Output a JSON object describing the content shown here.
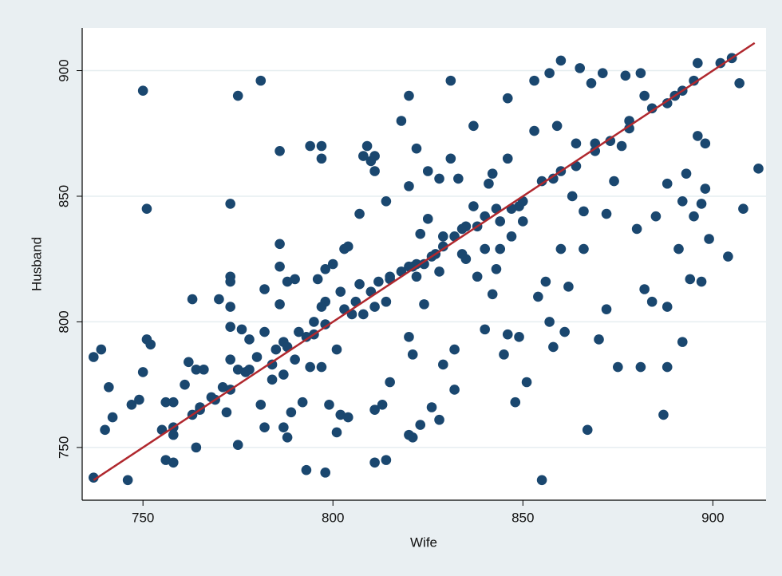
{
  "chart_data": {
    "type": "scatter",
    "x_label": "Wife",
    "y_label": "Husband",
    "color": "#1a476f",
    "xlim": [
      734,
      914
    ],
    "ylim": [
      729,
      917
    ],
    "xticks": [
      750,
      800,
      850,
      900
    ],
    "yticks": [
      750,
      800,
      850,
      900
    ],
    "grid": true,
    "x": [
      737,
      739,
      737,
      740,
      741,
      742,
      746,
      747,
      749,
      750,
      751,
      752,
      750,
      751,
      755,
      756,
      758,
      756,
      758,
      758,
      758,
      761,
      762,
      763,
      764,
      766,
      763,
      764,
      765,
      768,
      770,
      771,
      772,
      773,
      773,
      773,
      773,
      773,
      773,
      773,
      775,
      775,
      776,
      775,
      778,
      778,
      781,
      782,
      782,
      781,
      782,
      784,
      785,
      786,
      786,
      786,
      786,
      787,
      787,
      787,
      788,
      788,
      789,
      790,
      792,
      793,
      793,
      794,
      794,
      795,
      796,
      797,
      797,
      797,
      798,
      798,
      798,
      799,
      800,
      801,
      801,
      802,
      803,
      804,
      804,
      805,
      807,
      807,
      808,
      809,
      810,
      811,
      811,
      811,
      811,
      811,
      813,
      814,
      814,
      815,
      815,
      818,
      820,
      820,
      820,
      820,
      820,
      821,
      821,
      822,
      822,
      823,
      823,
      824,
      825,
      825,
      826,
      827,
      828,
      828,
      829,
      829,
      831,
      831,
      832,
      832,
      833,
      834,
      835,
      837,
      838,
      840,
      840,
      841,
      842,
      842,
      843,
      844,
      845,
      846,
      846,
      846,
      847,
      848,
      849,
      849,
      850,
      851,
      853,
      853,
      854,
      855,
      856,
      857,
      857,
      858,
      858,
      859,
      860,
      860,
      861,
      862,
      863,
      864,
      865,
      866,
      866,
      867,
      868,
      869,
      870,
      871,
      872,
      872,
      874,
      875,
      876,
      877,
      878,
      880,
      881,
      881,
      882,
      882,
      884,
      885,
      887,
      888,
      888,
      888,
      890,
      891,
      892,
      892,
      893,
      894,
      895,
      896,
      896,
      897,
      897,
      898,
      898,
      899,
      902,
      904,
      905,
      907,
      908,
      912,
      780,
      784,
      788,
      795,
      798,
      803,
      806,
      810,
      815,
      818,
      821,
      824,
      826,
      829,
      832,
      835,
      838,
      840,
      843,
      847,
      850,
      855,
      860,
      864,
      869,
      873,
      878,
      884,
      888,
      892,
      895,
      905,
      791,
      808,
      812,
      822,
      844,
      837,
      828,
      834,
      814,
      802,
      797,
      790,
      777,
      769,
      765
    ],
    "values": [
      786,
      789,
      738,
      757,
      774,
      762,
      737,
      767,
      769,
      780,
      793,
      791,
      892,
      845,
      757,
      768,
      768,
      745,
      744,
      758,
      755,
      775,
      784,
      809,
      781,
      781,
      763,
      750,
      765,
      770,
      809,
      774,
      764,
      847,
      818,
      816,
      806,
      798,
      785,
      773,
      751,
      890,
      797,
      781,
      793,
      781,
      896,
      796,
      813,
      767,
      758,
      777,
      789,
      868,
      831,
      822,
      807,
      792,
      779,
      758,
      754,
      816,
      764,
      817,
      768,
      794,
      741,
      870,
      782,
      800,
      817,
      870,
      865,
      782,
      740,
      808,
      821,
      767,
      823,
      756,
      789,
      763,
      829,
      830,
      762,
      803,
      815,
      843,
      866,
      870,
      864,
      860,
      866,
      806,
      744,
      765,
      767,
      745,
      848,
      818,
      776,
      880,
      854,
      755,
      890,
      822,
      794,
      787,
      754,
      823,
      869,
      835,
      759,
      807,
      841,
      860,
      766,
      827,
      761,
      857,
      834,
      783,
      896,
      865,
      789,
      773,
      857,
      837,
      825,
      878,
      818,
      797,
      829,
      855,
      811,
      859,
      821,
      829,
      787,
      795,
      889,
      865,
      834,
      768,
      794,
      846,
      840,
      776,
      896,
      876,
      810,
      737,
      816,
      899,
      800,
      790,
      857,
      878,
      904,
      829,
      796,
      814,
      850,
      871,
      901,
      829,
      844,
      757,
      895,
      871,
      793,
      899,
      843,
      805,
      856,
      782,
      870,
      898,
      877,
      837,
      899,
      782,
      813,
      890,
      808,
      842,
      763,
      782,
      855,
      806,
      890,
      829,
      792,
      848,
      859,
      817,
      842,
      903,
      874,
      816,
      847,
      853,
      871,
      833,
      903,
      826,
      905,
      895,
      845,
      861,
      786,
      783,
      790,
      795,
      799,
      805,
      808,
      812,
      817,
      820,
      822,
      823,
      826,
      830,
      834,
      838,
      838,
      842,
      845,
      845,
      848,
      856,
      860,
      862,
      868,
      872,
      880,
      885,
      887,
      892,
      896,
      905,
      796,
      803,
      816,
      818,
      840,
      846,
      820,
      827,
      808,
      812,
      806,
      785,
      780,
      769,
      766
    ],
    "fit_line": {
      "x": [
        737,
        911
      ],
      "values": [
        737,
        911
      ],
      "color": "#b0282e"
    }
  }
}
